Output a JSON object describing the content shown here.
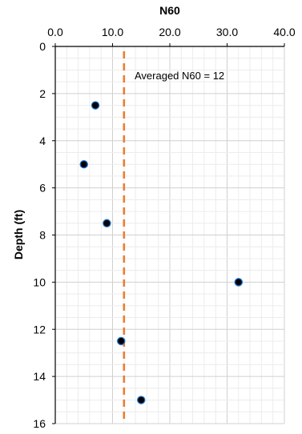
{
  "chart_data": {
    "type": "scatter",
    "title": "",
    "xlabel": "N60",
    "ylabel": "Depth (ft)",
    "xlim": [
      0,
      40
    ],
    "ylim": [
      0,
      16
    ],
    "x_axis_position": "top",
    "y_inverted": true,
    "x_ticks": [
      "0.0",
      "10.0",
      "20.0",
      "30.0",
      "40.0"
    ],
    "y_ticks": [
      "0",
      "2",
      "4",
      "6",
      "8",
      "10",
      "12",
      "14",
      "16"
    ],
    "grid": true,
    "legend": "none",
    "series": [
      {
        "points": [
          {
            "x": 7,
            "y": 2.5
          },
          {
            "x": 5,
            "y": 5
          },
          {
            "x": 9,
            "y": 7.5
          },
          {
            "x": 32,
            "y": 10
          },
          {
            "x": 11.5,
            "y": 12.5
          },
          {
            "x": 15,
            "y": 15
          }
        ],
        "marker_color": "#000000",
        "marker_edge": "#1f77d4"
      }
    ],
    "reference_line": {
      "x": 12,
      "style": "dashed",
      "color": "#ed7d31",
      "label": "Averaged N60 = 12"
    }
  }
}
